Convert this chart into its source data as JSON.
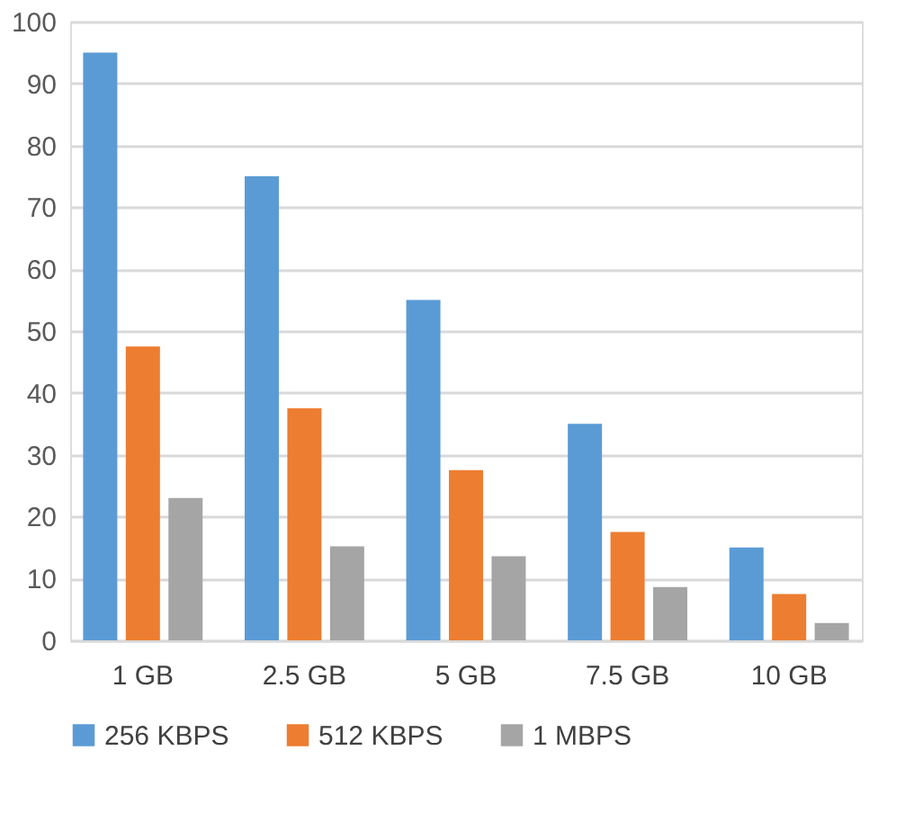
{
  "chart_data": {
    "type": "bar",
    "categories": [
      "1 GB",
      "2.5 GB",
      "5 GB",
      "7.5 GB",
      "10 GB",
      null
    ],
    "series": [
      {
        "name": "256 KBPS",
        "color": "#5b9bd5",
        "values": [
          95,
          75,
          55,
          35,
          15,
          null
        ]
      },
      {
        "name": "512 KBPS",
        "color": "#ed7d31",
        "values": [
          47.5,
          37.5,
          27.5,
          17.5,
          7.5,
          null
        ]
      },
      {
        "name": "1 MBPS",
        "color": "#a5a5a5",
        "values": [
          23,
          15.2,
          13.6,
          8.6,
          2.8,
          null
        ]
      }
    ],
    "ylim": [
      0,
      100
    ],
    "yticks": [
      0,
      10,
      20,
      30,
      40,
      50,
      60,
      70,
      80,
      90,
      100
    ],
    "grid": "y",
    "legend": "bottom"
  }
}
